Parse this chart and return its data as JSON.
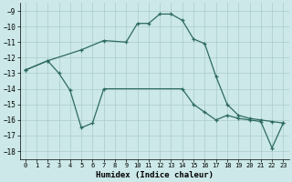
{
  "xlabel": "Humidex (Indice chaleur)",
  "xlim": [
    -0.5,
    23.5
  ],
  "ylim": [
    -18.5,
    -8.5
  ],
  "yticks": [
    -18,
    -17,
    -16,
    -15,
    -14,
    -13,
    -12,
    -11,
    -10,
    -9
  ],
  "xticks": [
    0,
    1,
    2,
    3,
    4,
    5,
    6,
    7,
    8,
    9,
    10,
    11,
    12,
    13,
    14,
    15,
    16,
    17,
    18,
    19,
    20,
    21,
    22,
    23
  ],
  "bg_color": "#cce8e8",
  "grid_color": "#aacccc",
  "line_color": "#2d6b5e",
  "line1_x": [
    0,
    2,
    5,
    7,
    9,
    10,
    11,
    12,
    13,
    14,
    15,
    16,
    17,
    18,
    19,
    20,
    21,
    22,
    23
  ],
  "line1_y": [
    -12.8,
    -12.2,
    -11.5,
    -10.9,
    -11.0,
    -9.8,
    -9.8,
    -9.2,
    -9.2,
    -9.6,
    -10.8,
    -11.1,
    -13.2,
    -15.0,
    -15.7,
    -15.9,
    -16.0,
    -16.1,
    -16.2
  ],
  "line2_x": [
    0,
    2,
    3,
    4,
    5,
    6,
    7,
    14,
    15,
    16,
    17,
    18,
    19,
    20,
    21,
    22,
    23
  ],
  "line2_y": [
    -12.8,
    -12.2,
    -13.0,
    -14.1,
    -16.5,
    -16.2,
    -14.0,
    -14.0,
    -15.0,
    -15.5,
    -16.0,
    -15.7,
    -15.9,
    -16.0,
    -16.1,
    -17.8,
    -16.2
  ]
}
